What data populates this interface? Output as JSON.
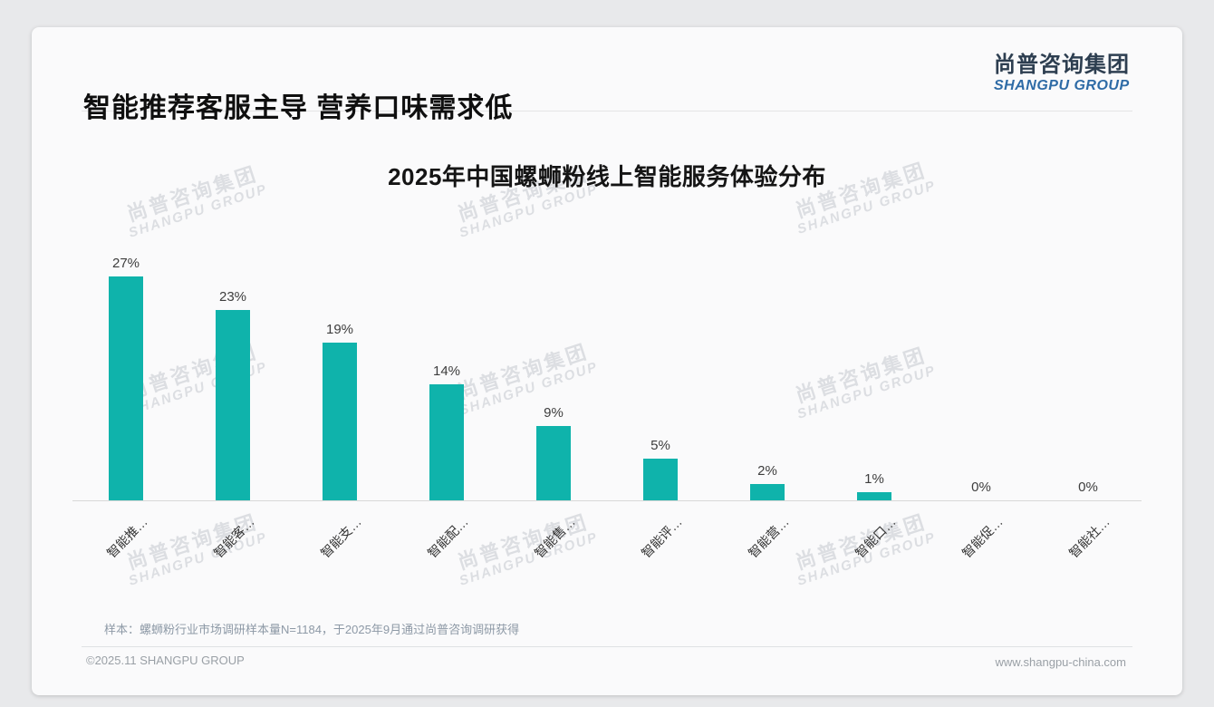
{
  "header": {
    "title": "智能推荐客服主导 营养口味需求低"
  },
  "logo": {
    "cn": "尚普咨询集团",
    "en": "SHANGPU GROUP",
    "cn_color": "#2d3e50",
    "en_color": "#2e6ba6"
  },
  "watermark": {
    "cn": "尚普咨询集团",
    "en": "SHANGPU GROUP"
  },
  "chart_data": {
    "type": "bar",
    "title": "2025年中国螺蛳粉线上智能服务体验分布",
    "categories": [
      "智能推…",
      "智能客…",
      "智能支…",
      "智能配…",
      "智能售…",
      "智能评…",
      "智能营…",
      "智能口…",
      "智能促…",
      "智能社…"
    ],
    "values": [
      27,
      23,
      19,
      14,
      9,
      5,
      2,
      1,
      0,
      0
    ],
    "value_labels": [
      "27%",
      "23%",
      "19%",
      "14%",
      "9%",
      "5%",
      "2%",
      "1%",
      "0%",
      "0%"
    ],
    "bar_color": "#0fb3ab",
    "xlabel": "",
    "ylabel": "",
    "ylim": [
      0,
      30
    ],
    "grid": false,
    "legend": "none",
    "x_axis_label_rotation": -45
  },
  "footer": {
    "sample_note": "样本：螺蛳粉行业市场调研样本量N=1184，于2025年9月通过尚普咨询调研获得",
    "copyright": "©2025.11 SHANGPU GROUP",
    "website": "www.shangpu-china.com"
  }
}
